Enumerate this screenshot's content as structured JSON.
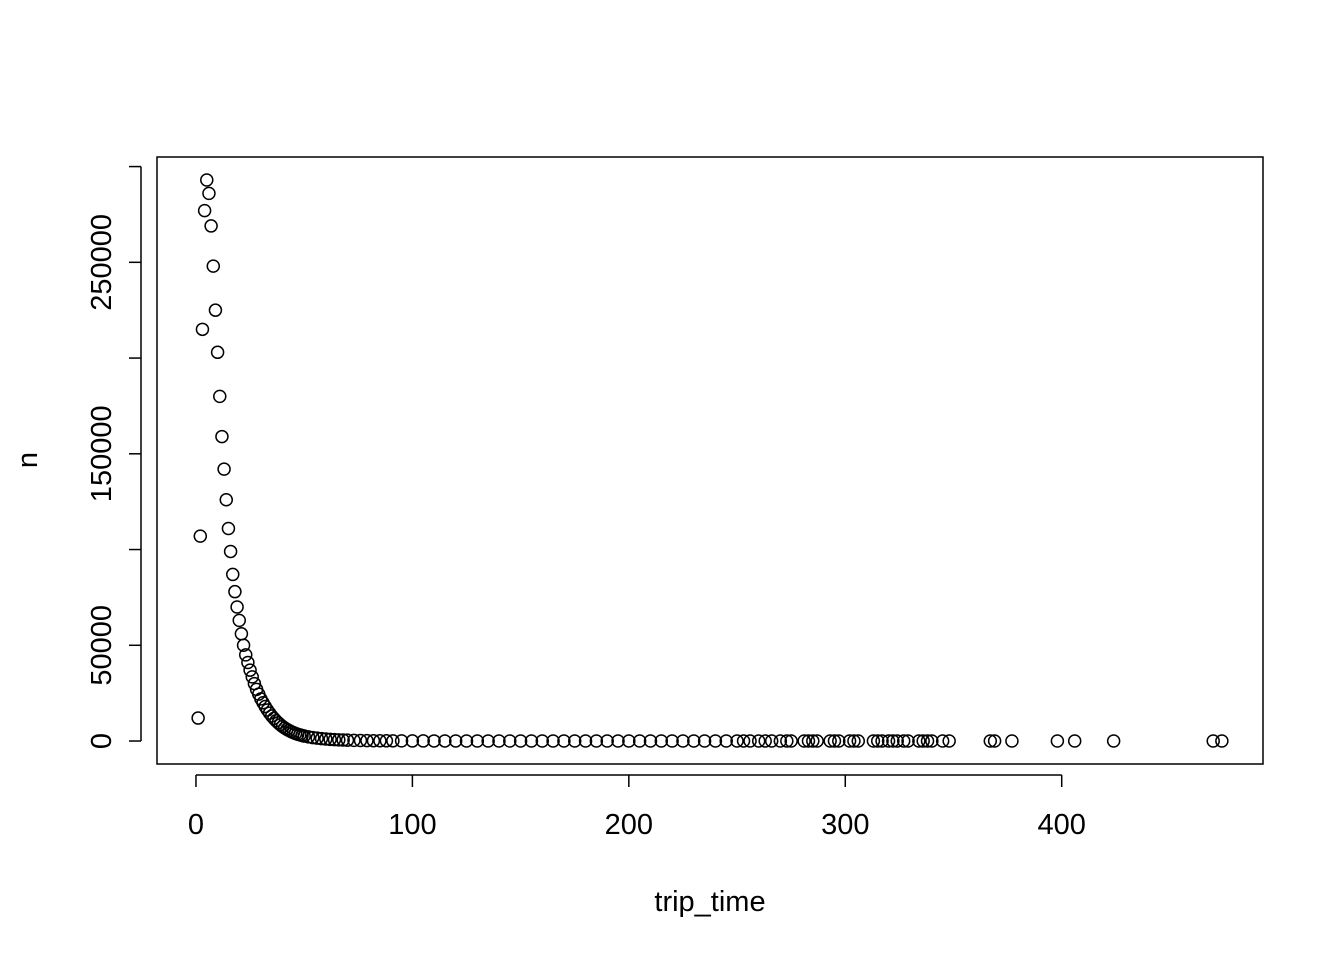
{
  "chart_data": {
    "type": "scatter",
    "title": "",
    "xlabel": "trip_time",
    "ylabel": "n",
    "xlim": [
      -18,
      493
    ],
    "ylim": [
      -12000,
      305000
    ],
    "x_ticks": [
      0,
      100,
      200,
      300,
      400
    ],
    "y_ticks": [
      0,
      50000,
      150000,
      250000
    ],
    "y_minor_ticks": [
      100000,
      200000,
      300000
    ],
    "grid": false,
    "legend": "none",
    "marker": "open-circle",
    "marker_color": "#000000",
    "series": [
      {
        "x": [
          1,
          2,
          3,
          4,
          5,
          6,
          7,
          8,
          9,
          10,
          11,
          12,
          13,
          14,
          15,
          16,
          17,
          18,
          19,
          20,
          21,
          22,
          23,
          24,
          25,
          26,
          27,
          28,
          29,
          30,
          31,
          32,
          33,
          34,
          35,
          36,
          37,
          38,
          39,
          40,
          41,
          42,
          43,
          44,
          45,
          46,
          47,
          48,
          49,
          50,
          52,
          54,
          56,
          58,
          60,
          62,
          64,
          66,
          68,
          70,
          73,
          76,
          79,
          82,
          85,
          88,
          91,
          95,
          100,
          105,
          110,
          115,
          120,
          125,
          130,
          135,
          140,
          145,
          150,
          155,
          160,
          165,
          170,
          175,
          180,
          185,
          190,
          195,
          200,
          205,
          210,
          215,
          220,
          225,
          230,
          235,
          240,
          245,
          250,
          253,
          256,
          260,
          263,
          266,
          270,
          273,
          275,
          281,
          283,
          285,
          287,
          293,
          295,
          297,
          302,
          304,
          306,
          313,
          315,
          317,
          320,
          322,
          324,
          327,
          329,
          334,
          336,
          338,
          340,
          345,
          348,
          367,
          369,
          377,
          398,
          406,
          424,
          470,
          474
        ],
        "y": [
          12000,
          107000,
          215000,
          277000,
          293000,
          286000,
          269000,
          248000,
          225000,
          203000,
          180000,
          159000,
          142000,
          126000,
          111000,
          99000,
          87000,
          78000,
          70000,
          63000,
          56000,
          50000,
          45000,
          41000,
          37000,
          33500,
          30000,
          27000,
          24500,
          22000,
          20000,
          18000,
          16200,
          14600,
          13100,
          11800,
          10600,
          9500,
          8500,
          7600,
          6800,
          6100,
          5500,
          4900,
          4400,
          3950,
          3550,
          3200,
          2900,
          2600,
          2150,
          1800,
          1500,
          1250,
          1050,
          880,
          740,
          620,
          520,
          440,
          340,
          270,
          210,
          170,
          135,
          110,
          90,
          70,
          55,
          45,
          38,
          32,
          27,
          23,
          20,
          17,
          15,
          13,
          11,
          10,
          9,
          8,
          7,
          6,
          6,
          5,
          5,
          4,
          4,
          4,
          3,
          3,
          3,
          3,
          2,
          2,
          2,
          2,
          2,
          2,
          2,
          1,
          1,
          1,
          1,
          1,
          1,
          1,
          1,
          1,
          1,
          1,
          1,
          1,
          1,
          1,
          1,
          1,
          1,
          1,
          1,
          1,
          1,
          1,
          1,
          1,
          1,
          1,
          1,
          1,
          1,
          1,
          1,
          1,
          1,
          1,
          1,
          1,
          1
        ]
      }
    ]
  }
}
